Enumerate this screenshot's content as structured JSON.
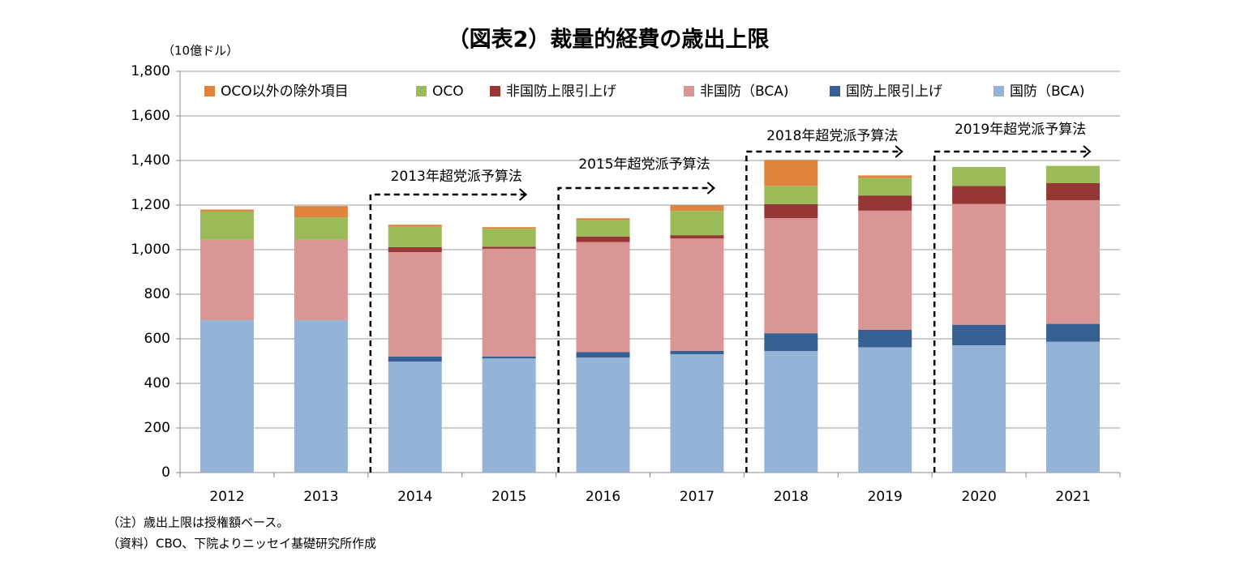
{
  "chart_data": {
    "type": "stacked_bar",
    "title": "（図表2）裁量的経費の歳出上限",
    "y_unit_label": "（10億ドル）",
    "categories": [
      "2012",
      "2013",
      "2014",
      "2015",
      "2016",
      "2017",
      "2018",
      "2019",
      "2020",
      "2021"
    ],
    "series": [
      {
        "name": "国防（BCA)",
        "color": "#95b3d7",
        "values": [
          684,
          684,
          498,
          512,
          516,
          531,
          545,
          562,
          571,
          587
        ]
      },
      {
        "name": "国防上限引上げ",
        "color": "#366092",
        "values": [
          0,
          0,
          22,
          9,
          25,
          15,
          80,
          78,
          92,
          80
        ]
      },
      {
        "name": "非国防（BCA)",
        "color": "#da9694",
        "values": [
          360,
          360,
          469,
          483,
          493,
          504,
          516,
          535,
          542,
          555
        ]
      },
      {
        "name": "非国防上限引上げ",
        "color": "#953735",
        "values": [
          0,
          0,
          22,
          9,
          25,
          15,
          63,
          68,
          81,
          77
        ]
      },
      {
        "name": "OCO",
        "color": "#9bbb59",
        "values": [
          127,
          101,
          92,
          81,
          74,
          109,
          82,
          78,
          85,
          77
        ]
      },
      {
        "name": "OCO以外の除外項目",
        "color": "#e0843d",
        "values": [
          9,
          51,
          9,
          7,
          8,
          25,
          117,
          12,
          0,
          0
        ]
      }
    ],
    "ylim": [
      0,
      1800
    ],
    "yticks": [
      0,
      200,
      400,
      600,
      800,
      {
        "value": 1000,
        "label": "1,000"
      },
      {
        "value": 1200,
        "label": "1,200"
      },
      {
        "value": 1400,
        "label": "1,400"
      },
      {
        "value": 1600,
        "label": "1,600"
      },
      {
        "value": 1800,
        "label": "1,800"
      }
    ],
    "grid": true,
    "legend_position": "top",
    "annotations": [
      "2013年超党派予算法",
      "2015年超党派予算法",
      "2018年超党派予算法",
      "2019年超党派予算法"
    ],
    "notes": [
      "（注）歳出上限は授権額ベース。",
      "（資料）CBO、下院よりニッセイ基礎研究所作成"
    ]
  }
}
